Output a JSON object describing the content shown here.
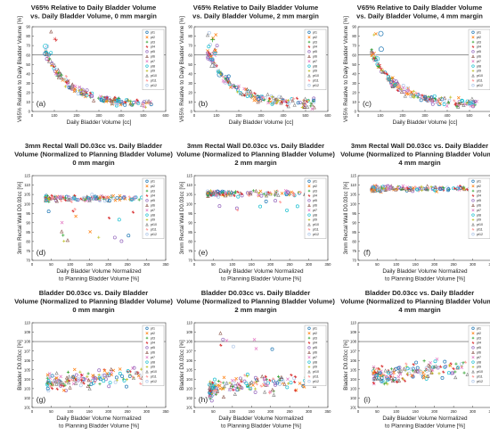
{
  "figure": {
    "legend_items": [
      "pt1",
      "pt2",
      "pt3",
      "pt4",
      "pt5",
      "pt6",
      "pt7",
      "pt8",
      "pt9",
      "pt10",
      "pt11",
      "pt12"
    ],
    "colors": [
      "#1f77b4",
      "#ff7f0e",
      "#2ca02c",
      "#d62728",
      "#9467bd",
      "#8c564b",
      "#e377c2",
      "#17becf",
      "#bcbd22",
      "#7f7f7f",
      "#ff9896",
      "#aec7e8"
    ]
  },
  "chart_data": [
    {
      "id": "a",
      "type": "scatter",
      "panel_label": "(a)",
      "title": [
        "V65% Relative to Daily Bladder Volume",
        "vs. Daily Bladder Volume, 0 mm margin"
      ],
      "xlabel": "Daily Bladder Volume [cc]",
      "ylabel": "V65% Relative to Daily Bladder Volume [%]",
      "xlim": [
        0,
        600
      ],
      "ylim": [
        0,
        90
      ],
      "xticks": [
        0,
        100,
        200,
        300,
        400,
        500,
        600
      ],
      "yticks": [
        0,
        10,
        20,
        30,
        40,
        50,
        60,
        70,
        80,
        90
      ],
      "ref_line": 60,
      "x_tick_labels": true,
      "y_tick_labels": true
    },
    {
      "id": "b",
      "type": "scatter",
      "panel_label": "(b)",
      "title": [
        "V65% Relative to Daily Bladder Volume",
        "vs. Daily Bladder Volume, 2 mm margin"
      ],
      "xlabel": "Daily Bladder Volume [cc]",
      "ylabel": "V65% Relative to Daily Bladder Volume [%]",
      "xlim": [
        0,
        600
      ],
      "ylim": [
        0,
        90
      ],
      "xticks": [
        0,
        100,
        200,
        300,
        400,
        500,
        600
      ],
      "yticks": [
        0,
        10,
        20,
        30,
        40,
        50,
        60,
        70,
        80,
        90
      ],
      "ref_line": 60,
      "x_tick_labels": true,
      "y_tick_labels": true
    },
    {
      "id": "c",
      "type": "scatter",
      "panel_label": "(c)",
      "title": [
        "V65% Relative to Daily Bladder Volume",
        "vs. Daily Bladder Volume, 4 mm margin"
      ],
      "xlabel": "Daily Bladder Volume [cc]",
      "ylabel": "V65% Relative to Daily Bladder Volume [%]",
      "xlim": [
        0,
        600
      ],
      "ylim": [
        0,
        90
      ],
      "xticks": [
        0,
        100,
        200,
        300,
        400,
        500,
        600
      ],
      "yticks": [
        0,
        10,
        20,
        30,
        40,
        50,
        60,
        70,
        80,
        90
      ],
      "ref_line": 60,
      "x_tick_labels": true,
      "y_tick_labels": true
    },
    {
      "id": "d",
      "type": "scatter",
      "panel_label": "(d)",
      "title": [
        "3mm Rectal Wall D0.03cc vs. Daily Bladder",
        "Volume (Normalized to Planning Bladder Volume)",
        "0 mm margin"
      ],
      "xlabel": "Daily Bladder Volume Normalized\nto Planning Bladder Volume  [%]",
      "ylabel": "3mm Rectal Wall D0.03cc [%]",
      "xlim": [
        0,
        350
      ],
      "ylim": [
        70,
        115
      ],
      "xticks": [
        0,
        50,
        100,
        150,
        200,
        250,
        300,
        350
      ],
      "yticks": [
        70,
        75,
        80,
        85,
        90,
        95,
        100,
        105,
        110,
        115
      ],
      "ref_line": null,
      "x_tick_labels": true,
      "y_tick_labels": true
    },
    {
      "id": "e",
      "type": "scatter",
      "panel_label": "(e)",
      "title": [
        "3mm Rectal Wall D0.03cc vs. Daily Bladder",
        "Volume (Normalized to Planning Bladder Volume)",
        "2 mm margin"
      ],
      "xlabel": "Daily Bladder Volume Normalized\nto Planning Bladder Volume  [%]",
      "ylabel": "3mm Rectal Wall D0.03cc [%]",
      "xlim": [
        0,
        350
      ],
      "ylim": [
        70,
        115
      ],
      "xticks": [
        0,
        50,
        100,
        150,
        200,
        250,
        300,
        350
      ],
      "yticks": [
        70,
        75,
        80,
        85,
        90,
        95,
        100,
        105,
        110,
        115
      ],
      "ref_line": null,
      "x_tick_labels": true,
      "y_tick_labels": true
    },
    {
      "id": "f",
      "type": "scatter",
      "panel_label": "(f)",
      "title": [
        "3mm Rectal Wall D0.03cc vs. Daily Bladder",
        "Volume (Normalized to Planning Bladder Volume)",
        "4 mm margin"
      ],
      "xlabel": "Daily Bladder Volume Normalized\nto Planning Bladder Volume  [%]",
      "ylabel": "3mm Rectal Wall D0.03cc [%]",
      "xlim": [
        0,
        350
      ],
      "ylim": [
        70,
        115
      ],
      "xticks": [
        0,
        50,
        100,
        150,
        200,
        250,
        300,
        350
      ],
      "yticks": [
        70,
        75,
        80,
        85,
        90,
        95,
        100,
        105,
        110,
        115
      ],
      "ref_line": null,
      "x_tick_labels": true,
      "y_tick_labels": true
    },
    {
      "id": "g",
      "type": "scatter",
      "panel_label": "(g)",
      "title": [
        "Bladder D0.03cc vs. Daily Bladder",
        "Volume (Normalized to Planning Bladder Volume)",
        "0 mm margin"
      ],
      "xlabel": "Daily Bladder Volume Normalized\nto Planning Bladder Volume  [%]",
      "ylabel": "Bladder D0.03cc [%]",
      "xlim": [
        0,
        350
      ],
      "ylim": [
        101,
        110
      ],
      "xticks": [
        0,
        50,
        100,
        150,
        200,
        250,
        300,
        350
      ],
      "yticks": [
        101,
        102,
        103,
        104,
        105,
        106,
        107,
        108,
        109,
        110
      ],
      "ref_line": 108,
      "x_tick_labels": true,
      "y_tick_labels": true
    },
    {
      "id": "h",
      "type": "scatter",
      "panel_label": "(h)",
      "title": [
        "Bladder D0.03cc vs. Daily Bladder",
        "Volume (Normalized to Planning Bladder Volume)",
        "2 mm margin"
      ],
      "xlabel": "Daily Bladder Volume Normalized\nto Planning Bladder Volume  [%]",
      "ylabel": "Bladder D0.03cc [%]",
      "xlim": [
        0,
        350
      ],
      "ylim": [
        101,
        110
      ],
      "xticks": [
        0,
        50,
        100,
        150,
        200,
        250,
        300,
        350
      ],
      "yticks": [
        101,
        102,
        103,
        104,
        105,
        106,
        107,
        108,
        109,
        110
      ],
      "ref_line": 108,
      "x_tick_labels": true,
      "y_tick_labels": true
    },
    {
      "id": "i",
      "type": "scatter",
      "panel_label": "(i)",
      "title": [
        "Bladder D0.03cc vs. Daily Bladder",
        "Volume (Normalized to Planning Bladder Volume)",
        "4 mm margin"
      ],
      "xlabel": "Daily Bladder Volume Normalized\nto Planning Bladder Volume  [%]",
      "ylabel": "Bladder D0.03cc [%]",
      "xlim": [
        0,
        350
      ],
      "ylim": [
        101,
        110
      ],
      "xticks": [
        0,
        50,
        100,
        150,
        200,
        250,
        300,
        350
      ],
      "yticks": [
        101,
        102,
        103,
        104,
        105,
        106,
        107,
        108,
        109,
        110
      ],
      "ref_line": 108,
      "x_tick_labels": true,
      "y_tick_labels": true
    }
  ]
}
